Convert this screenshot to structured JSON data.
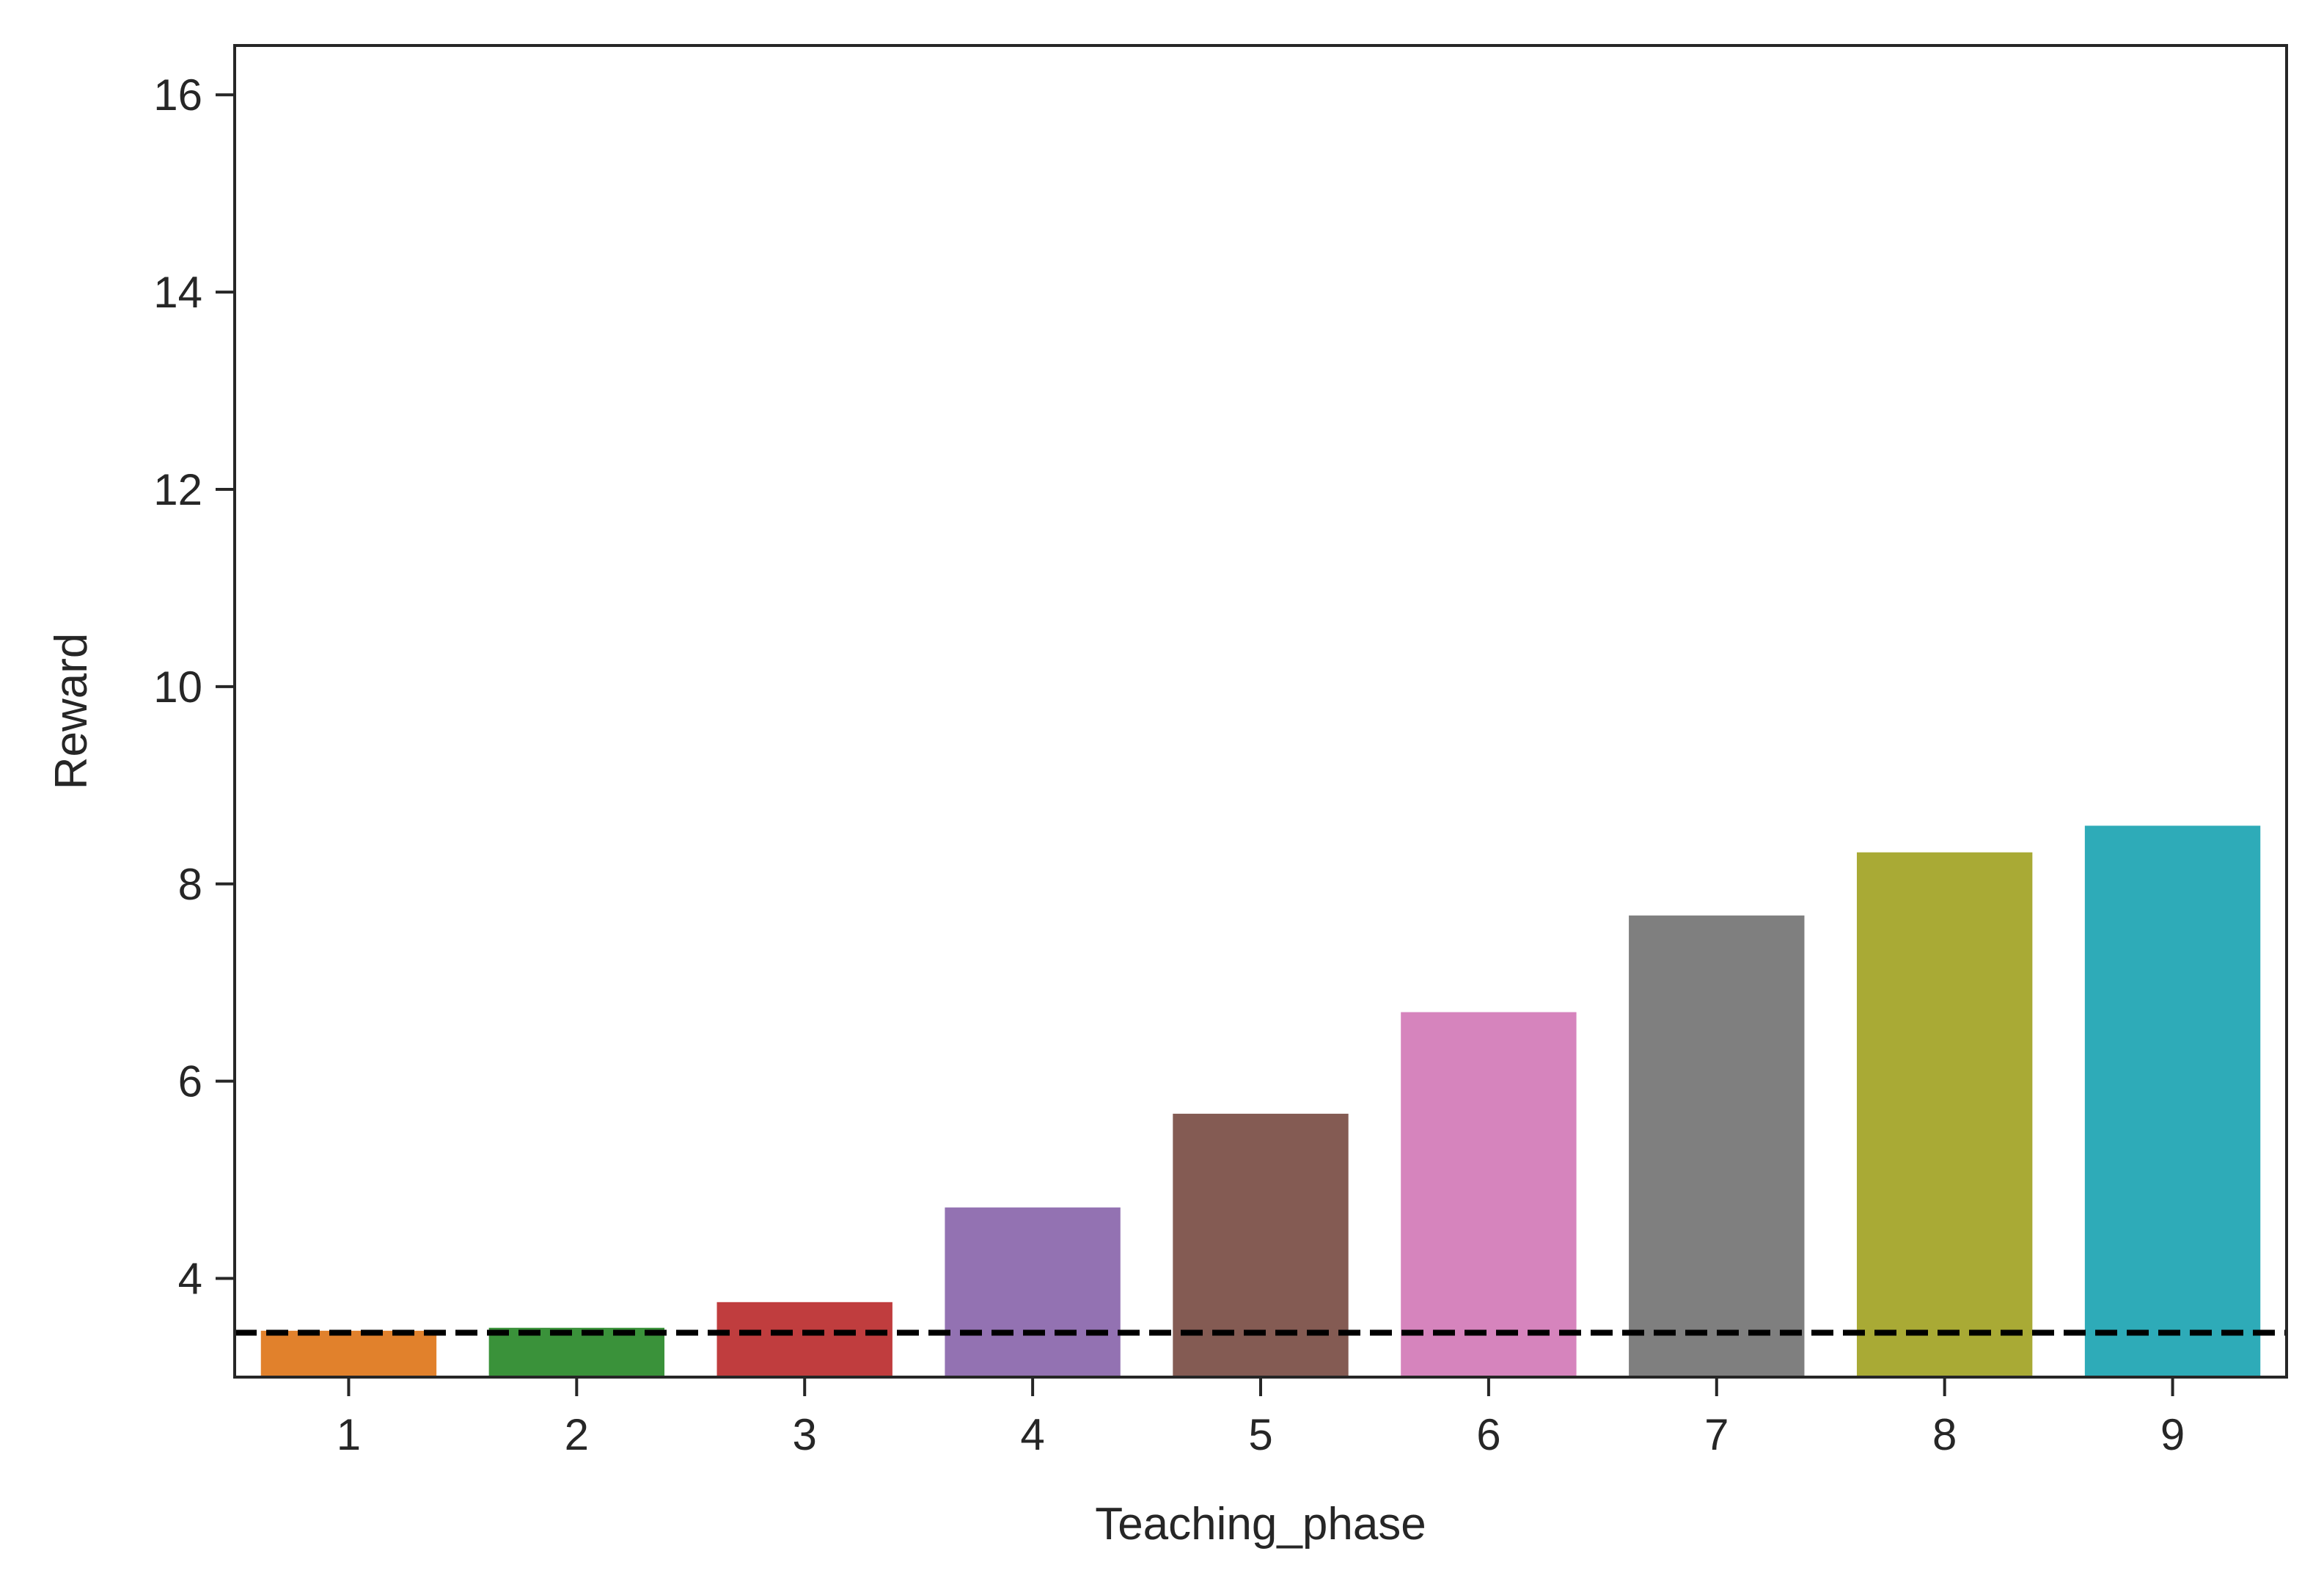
{
  "chart_data": {
    "type": "bar",
    "title": "",
    "xlabel": "Teaching_phase",
    "ylabel": "Reward",
    "categories": [
      "1",
      "2",
      "3",
      "4",
      "5",
      "6",
      "7",
      "8",
      "9"
    ],
    "values": [
      3.47,
      3.5,
      3.76,
      4.72,
      5.67,
      6.7,
      7.68,
      8.32,
      8.59
    ],
    "colors": [
      "#e1812c",
      "#3a923a",
      "#c03d3e",
      "#9372b2",
      "#845b53",
      "#d684bd",
      "#7f7f7f",
      "#a9aa35",
      "#2eabb8"
    ],
    "ylim": [
      3.0,
      16.5
    ],
    "yticks": [
      4,
      6,
      8,
      10,
      12,
      14,
      16
    ],
    "baseline": {
      "value": 3.45,
      "style": "dashed",
      "color": "#000000"
    },
    "grid": false,
    "legend": "none"
  }
}
